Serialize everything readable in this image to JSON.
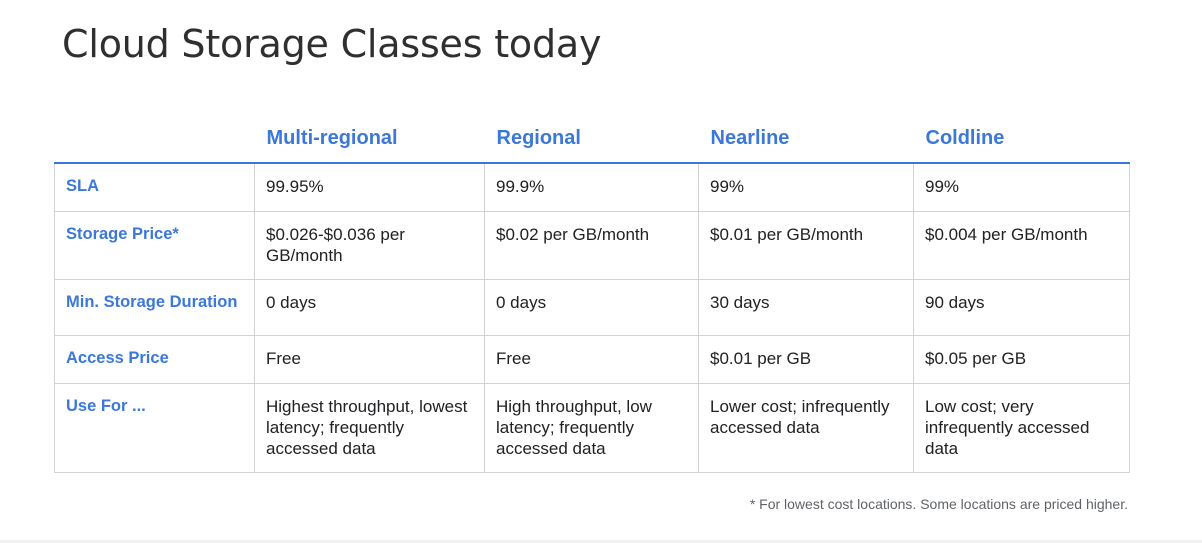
{
  "title": "Cloud Storage Classes today",
  "table": {
    "columns": [
      "",
      "Multi-regional",
      "Regional",
      "Nearline",
      "Coldline"
    ],
    "rows": [
      {
        "label": "SLA",
        "cells": [
          "99.95%",
          "99.9%",
          "99%",
          "99%"
        ]
      },
      {
        "label": "Storage Price*",
        "cells": [
          "$0.026-$0.036 per GB/month",
          "$0.02 per GB/month",
          "$0.01 per GB/month",
          "$0.004 per GB/month"
        ]
      },
      {
        "label": "Min. Storage Duration",
        "cells": [
          "0 days",
          "0 days",
          "30 days",
          "90 days"
        ]
      },
      {
        "label": "Access Price",
        "cells": [
          "Free",
          "Free",
          "$0.01 per GB",
          "$0.05 per GB"
        ]
      },
      {
        "label": "Use For ...",
        "cells": [
          "Highest throughput, lowest latency; frequently accessed data",
          "High throughput, low latency; frequently accessed data",
          "Lower cost; infrequently accessed data",
          "Low cost; very infrequently accessed data"
        ]
      }
    ]
  },
  "footnote": "* For lowest cost locations. Some locations are priced higher.",
  "colors": {
    "accent": "#3b78d8",
    "text": "#202124",
    "title": "#2f2f2f",
    "grid": "#d3d3d3",
    "footnote": "#5f6368"
  }
}
